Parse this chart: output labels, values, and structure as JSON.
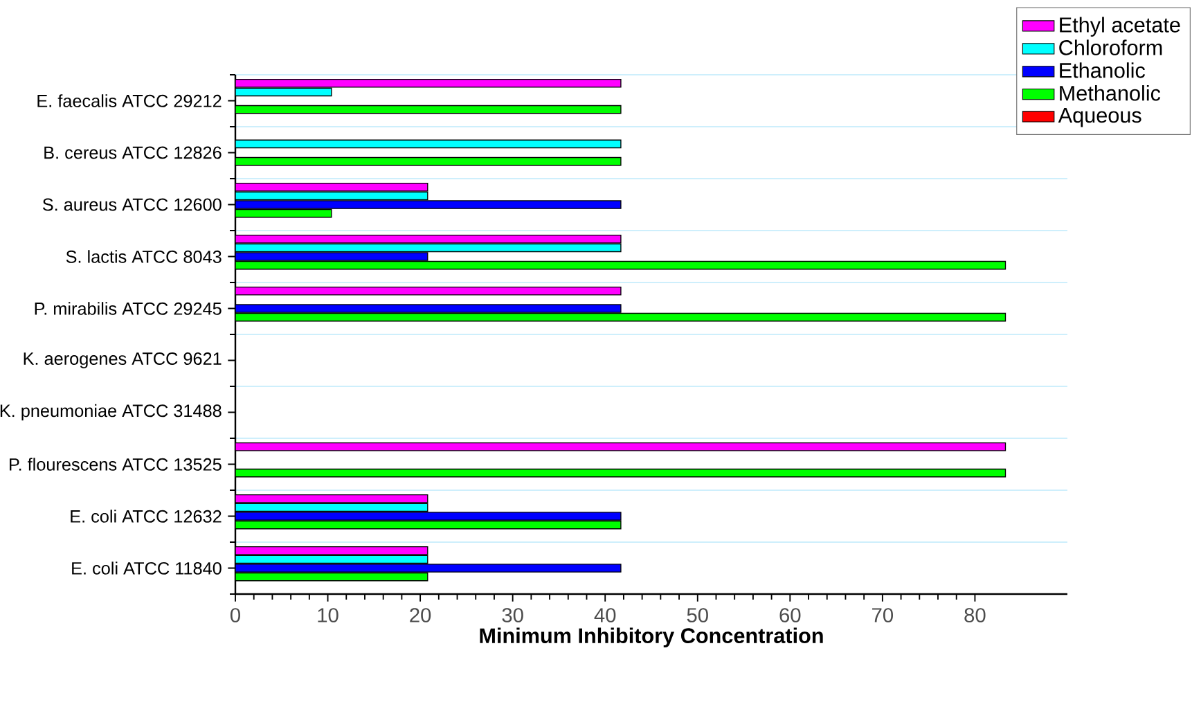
{
  "chart_data": {
    "type": "bar",
    "orientation": "horizontal",
    "xlabel": "Minimum Inhibitory Concentration",
    "categories": [
      "E. faecalis ATCC 29212",
      "B. cereus ATCC 12826",
      "S. aureus ATCC 12600",
      "S. lactis ATCC 8043",
      "P. mirabilis ATCC 29245",
      "K. aerogenes ATCC 9621",
      "K. pneumoniae ATCC 31488",
      "P. flourescens ATCC 13525",
      "E. coli ATCC 12632",
      "E. coli ATCC 11840"
    ],
    "series": [
      {
        "name": "Ethyl acetate",
        "color": "#ff00ff",
        "values": [
          41.7,
          null,
          20.8,
          41.7,
          41.7,
          null,
          null,
          83.3,
          20.8,
          20.8
        ]
      },
      {
        "name": "Chloroform",
        "color": "#00ffff",
        "values": [
          10.4,
          41.7,
          20.8,
          41.7,
          null,
          null,
          null,
          null,
          20.8,
          20.8
        ]
      },
      {
        "name": "Ethanolic",
        "color": "#0000ff",
        "values": [
          null,
          null,
          41.7,
          20.8,
          41.7,
          null,
          null,
          null,
          41.7,
          41.7
        ]
      },
      {
        "name": "Methanolic",
        "color": "#00ff00",
        "values": [
          41.7,
          41.7,
          10.4,
          83.3,
          83.3,
          null,
          null,
          83.3,
          41.7,
          20.8
        ]
      },
      {
        "name": "Aqueous",
        "color": "#ff0000",
        "values": [
          null,
          null,
          null,
          null,
          null,
          null,
          null,
          null,
          null,
          null
        ]
      }
    ],
    "xlim": [
      0,
      90
    ],
    "xticks": [
      0,
      10,
      20,
      30,
      40,
      50,
      60,
      70,
      80
    ],
    "grid": "y",
    "legend": "top right"
  }
}
